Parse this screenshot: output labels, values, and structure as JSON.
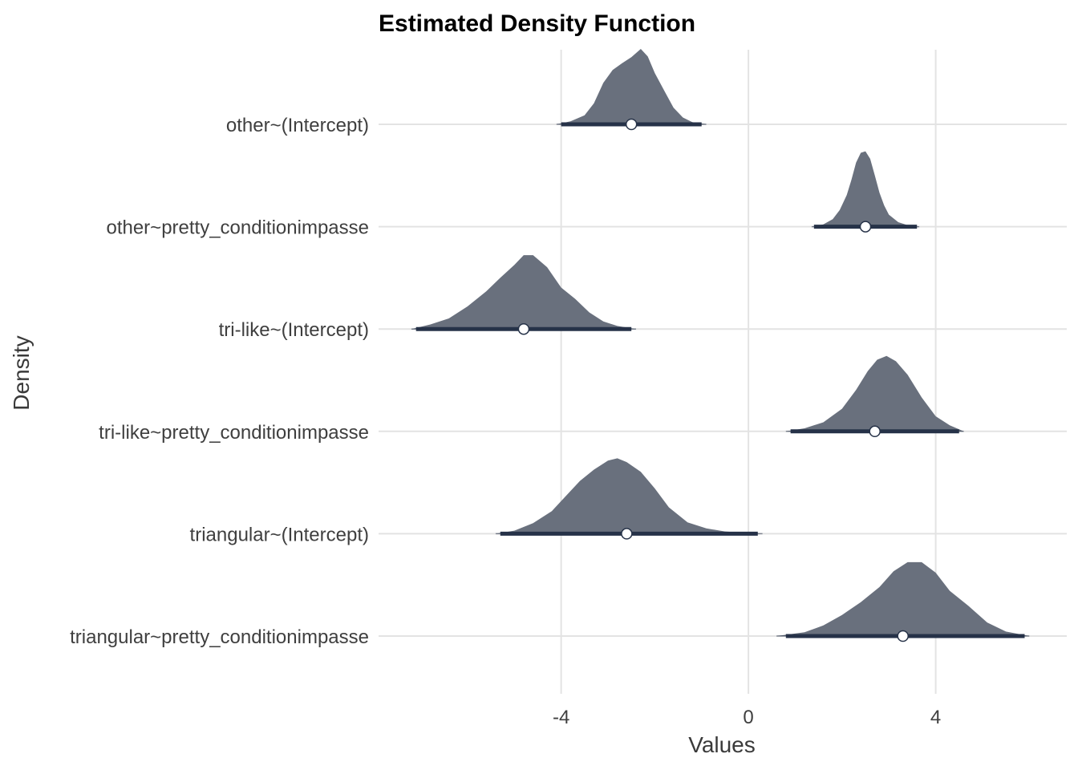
{
  "chart_data": {
    "type": "density",
    "title": "Estimated Density Function",
    "xlabel": "Values",
    "ylabel": "Density",
    "xlim": [
      -7.9,
      6.8
    ],
    "x_ticks": [
      -4,
      0,
      4
    ],
    "x_tick_labels": [
      "-4",
      "0",
      "4"
    ],
    "grid": true,
    "fill_color": "#69707d",
    "interval_color": "#263248",
    "point_fill": "#ffffff",
    "categories": [
      "other~(Intercept)",
      "other~pretty_conditionimpasse",
      "tri-like~(Intercept)",
      "tri-like~pretty_conditionimpasse",
      "triangular~(Intercept)",
      "triangular~pretty_conditionimpasse"
    ],
    "series": [
      {
        "point": -2.5,
        "interval": [
          -4.0,
          -1.0
        ],
        "range": [
          -4.1,
          -0.9
        ],
        "density_x": [
          -4.1,
          -3.8,
          -3.5,
          -3.3,
          -3.1,
          -2.9,
          -2.7,
          -2.5,
          -2.3,
          -2.15,
          -2.0,
          -1.8,
          -1.6,
          -1.4,
          -1.2,
          -0.9
        ],
        "density_y": [
          0.0,
          0.04,
          0.12,
          0.28,
          0.55,
          0.72,
          0.81,
          0.89,
          1.0,
          0.9,
          0.68,
          0.45,
          0.22,
          0.09,
          0.03,
          0.0
        ]
      },
      {
        "point": 2.5,
        "interval": [
          1.4,
          3.6
        ],
        "range": [
          1.35,
          3.65
        ],
        "density_x": [
          1.35,
          1.6,
          1.8,
          1.95,
          2.1,
          2.2,
          2.3,
          2.4,
          2.5,
          2.6,
          2.7,
          2.8,
          2.9,
          3.0,
          3.2,
          3.4,
          3.65
        ],
        "density_y": [
          0.0,
          0.03,
          0.1,
          0.22,
          0.42,
          0.62,
          0.85,
          0.98,
          1.0,
          0.9,
          0.68,
          0.45,
          0.28,
          0.16,
          0.06,
          0.02,
          0.0
        ]
      },
      {
        "point": -4.8,
        "interval": [
          -7.1,
          -2.5
        ],
        "range": [
          -7.2,
          -2.4
        ],
        "density_x": [
          -7.2,
          -6.8,
          -6.4,
          -6.0,
          -5.6,
          -5.3,
          -5.0,
          -4.8,
          -4.6,
          -4.3,
          -4.0,
          -3.7,
          -3.4,
          -3.1,
          -2.8,
          -2.4
        ],
        "density_y": [
          0.0,
          0.06,
          0.14,
          0.3,
          0.5,
          0.68,
          0.85,
          0.98,
          0.98,
          0.82,
          0.55,
          0.4,
          0.22,
          0.1,
          0.04,
          0.0
        ]
      },
      {
        "point": 2.7,
        "interval": [
          0.9,
          4.5
        ],
        "range": [
          0.8,
          4.6
        ],
        "density_x": [
          0.8,
          1.2,
          1.6,
          2.0,
          2.3,
          2.55,
          2.75,
          2.95,
          3.15,
          3.4,
          3.7,
          4.0,
          4.3,
          4.6
        ],
        "density_y": [
          0.0,
          0.04,
          0.12,
          0.3,
          0.55,
          0.8,
          0.95,
          1.0,
          0.93,
          0.75,
          0.45,
          0.2,
          0.08,
          0.0
        ]
      },
      {
        "point": -2.6,
        "interval": [
          -5.3,
          0.2
        ],
        "range": [
          -5.4,
          0.3
        ],
        "density_x": [
          -5.4,
          -5.0,
          -4.6,
          -4.2,
          -3.9,
          -3.6,
          -3.3,
          -3.0,
          -2.8,
          -2.6,
          -2.3,
          -2.0,
          -1.7,
          -1.3,
          -0.9,
          -0.5,
          0.0,
          0.3
        ],
        "density_y": [
          0.0,
          0.04,
          0.14,
          0.3,
          0.5,
          0.7,
          0.85,
          0.97,
          1.0,
          0.95,
          0.82,
          0.6,
          0.35,
          0.15,
          0.07,
          0.03,
          0.01,
          0.0
        ]
      },
      {
        "point": 3.3,
        "interval": [
          0.8,
          5.9
        ],
        "range": [
          0.6,
          6.0
        ],
        "density_x": [
          0.6,
          1.2,
          1.6,
          2.0,
          2.4,
          2.8,
          3.1,
          3.4,
          3.7,
          4.0,
          4.3,
          4.7,
          5.1,
          5.5,
          6.0
        ],
        "density_y": [
          0.0,
          0.05,
          0.14,
          0.28,
          0.45,
          0.65,
          0.86,
          0.98,
          0.98,
          0.84,
          0.6,
          0.4,
          0.18,
          0.06,
          0.0
        ]
      }
    ]
  }
}
